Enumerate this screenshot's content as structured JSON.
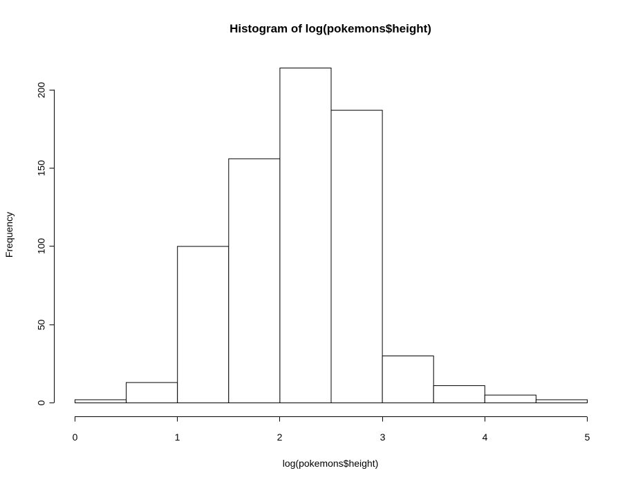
{
  "chart_data": {
    "type": "bar",
    "title": "Histogram of log(pokemons$height)",
    "xlabel": "log(pokemons$height)",
    "ylabel": "Frequency",
    "xlim": [
      0,
      5
    ],
    "ylim": [
      0,
      214
    ],
    "x_ticks": [
      "0",
      "1",
      "2",
      "3",
      "4",
      "5"
    ],
    "y_ticks": [
      "0",
      "50",
      "100",
      "150",
      "200"
    ],
    "grid": false,
    "bins": [
      {
        "from": 0.0,
        "to": 0.5,
        "count": 2
      },
      {
        "from": 0.5,
        "to": 1.0,
        "count": 13
      },
      {
        "from": 1.0,
        "to": 1.5,
        "count": 100
      },
      {
        "from": 1.5,
        "to": 2.0,
        "count": 156
      },
      {
        "from": 2.0,
        "to": 2.5,
        "count": 214
      },
      {
        "from": 2.5,
        "to": 3.0,
        "count": 187
      },
      {
        "from": 3.0,
        "to": 3.5,
        "count": 30
      },
      {
        "from": 3.5,
        "to": 4.0,
        "count": 11
      },
      {
        "from": 4.0,
        "to": 4.5,
        "count": 5
      },
      {
        "from": 4.5,
        "to": 5.0,
        "count": 2
      }
    ],
    "colors": {
      "bar_fill": "#ffffff",
      "bar_stroke": "#000000",
      "axis": "#000000",
      "background": "#ffffff"
    }
  }
}
